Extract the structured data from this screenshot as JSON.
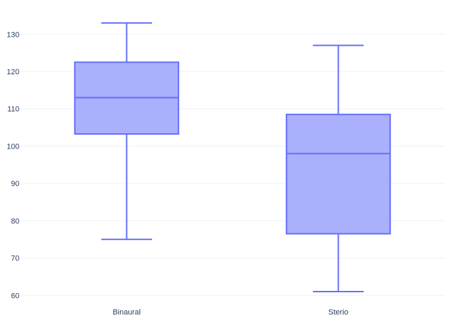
{
  "chart_data": {
    "type": "box",
    "title": "",
    "xlabel": "",
    "ylabel": "",
    "ylim": [
      58.2,
      137.5
    ],
    "yticks": [
      60,
      70,
      80,
      90,
      100,
      110,
      120,
      130
    ],
    "grid": true,
    "categories": [
      "Binaural",
      "Sterio"
    ],
    "boxes": [
      {
        "category": "Binaural",
        "min": 75,
        "q1": 103.25,
        "median": 113,
        "q3": 122.5,
        "max": 133
      },
      {
        "category": "Sterio",
        "min": 61,
        "q1": 76.5,
        "median": 98,
        "q3": 108.5,
        "max": 127
      }
    ],
    "colors": {
      "box_line": "#636efa",
      "box_fill": "#aab0fc",
      "grid": "#ebf0f8",
      "tick_text": "#2a3f5f",
      "background": "#ffffff"
    }
  }
}
